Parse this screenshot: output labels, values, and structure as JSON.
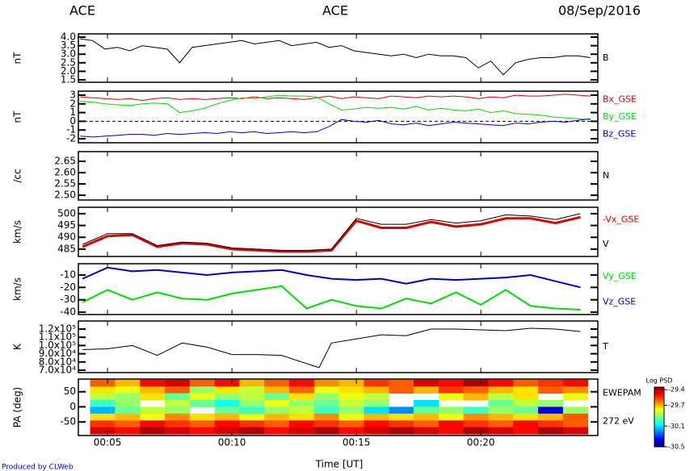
{
  "header": {
    "left": "ACE",
    "center": "ACE",
    "right": "08/Sep/2016"
  },
  "footer": "Produced by CLWeb",
  "time_axis": {
    "label": "Time [UT]",
    "xlim": [
      3.83,
      24.7
    ],
    "xticks": [
      {
        "value": 5,
        "label": "00:05"
      },
      {
        "value": 10,
        "label": "00:10"
      },
      {
        "value": 15,
        "label": "00:15"
      },
      {
        "value": 20,
        "label": "00:20"
      }
    ]
  },
  "chart_data": [
    {
      "type": "line",
      "ylabel": "nT",
      "ylim": [
        1.36,
        4.19
      ],
      "yticks": [
        {
          "value": 4,
          "label": "4.0"
        },
        3.5,
        {
          "value": 3,
          "label": "3.0"
        },
        2.5,
        {
          "value": 2,
          "label": "2.0"
        },
        1.5
      ],
      "x": [
        3.9,
        4.4,
        4.9,
        5.4,
        5.9,
        6.4,
        6.9,
        7.4,
        7.9,
        8.4,
        8.9,
        9.4,
        9.9,
        10.4,
        10.9,
        11.4,
        11.9,
        12.4,
        12.9,
        13.4,
        13.9,
        14.4,
        14.9,
        15.4,
        15.9,
        16.4,
        16.9,
        17.4,
        17.9,
        18.4,
        18.9,
        19.4,
        19.9,
        20.4,
        20.9,
        21.4,
        21.9,
        22.4,
        22.9,
        23.4,
        23.9,
        24.4
      ],
      "series": [
        {
          "name": "B",
          "color": "#000000",
          "values": [
            3.9,
            3.8,
            3.3,
            3.4,
            3.2,
            3.5,
            3.4,
            3.3,
            2.5,
            3.4,
            3.5,
            3.6,
            3.7,
            3.8,
            3.6,
            3.7,
            3.8,
            3.5,
            3.6,
            3.7,
            3.4,
            3.5,
            3.2,
            3.1,
            3.0,
            2.9,
            3.0,
            2.8,
            3.0,
            2.9,
            2.9,
            2.8,
            2.2,
            2.6,
            1.8,
            2.5,
            2.7,
            2.8,
            2.8,
            2.9,
            2.9,
            2.8
          ]
        }
      ]
    },
    {
      "type": "line",
      "ylabel": "nT",
      "ylim": [
        -2.46,
        3.46
      ],
      "yticks": [
        3,
        2,
        1,
        0,
        -1,
        -2
      ],
      "zero_line": true,
      "x": [
        3.9,
        4.4,
        4.9,
        5.4,
        5.9,
        6.4,
        6.9,
        7.4,
        7.9,
        8.4,
        8.9,
        9.4,
        9.9,
        10.4,
        10.9,
        11.4,
        11.9,
        12.4,
        12.9,
        13.4,
        13.9,
        14.4,
        14.9,
        15.4,
        15.9,
        16.4,
        16.9,
        17.4,
        17.9,
        18.4,
        18.9,
        19.4,
        19.9,
        20.4,
        20.9,
        21.4,
        21.9,
        22.4,
        22.9,
        23.4,
        23.9,
        24.4
      ],
      "series": [
        {
          "name": "Bx_GSE",
          "color": "#e00000",
          "values": [
            2.8,
            2.7,
            2.6,
            2.5,
            2.6,
            2.4,
            2.6,
            2.7,
            2.5,
            2.6,
            2.5,
            2.6,
            2.7,
            2.6,
            2.8,
            2.6,
            2.7,
            2.6,
            2.5,
            2.7,
            2.9,
            2.6,
            2.8,
            2.7,
            2.6,
            2.9,
            2.8,
            2.7,
            2.9,
            2.8,
            2.9,
            2.8,
            2.6,
            2.8,
            2.7,
            3.0,
            2.9,
            2.9,
            3.0,
            3.1,
            3.0,
            2.9
          ]
        },
        {
          "name": "By_GSE",
          "color": "#00dd00",
          "values": [
            2.3,
            2.2,
            2.0,
            1.9,
            1.8,
            2.0,
            2.1,
            2.0,
            1.0,
            1.2,
            1.5,
            2.0,
            2.4,
            2.7,
            2.6,
            2.8,
            3.0,
            2.9,
            2.9,
            2.8,
            2.0,
            1.3,
            1.4,
            1.6,
            1.5,
            1.6,
            1.4,
            1.7,
            1.3,
            1.5,
            1.3,
            1.2,
            1.4,
            1.0,
            1.2,
            0.9,
            0.8,
            0.7,
            0.5,
            0.4,
            0.3,
            0.2
          ]
        },
        {
          "name": "Bz_GSE",
          "color": "#0000cc",
          "values": [
            -1.7,
            -1.8,
            -1.7,
            -1.6,
            -1.5,
            -1.5,
            -1.6,
            -1.4,
            -1.5,
            -1.4,
            -1.3,
            -1.4,
            -1.2,
            -1.3,
            -1.2,
            -1.4,
            -1.3,
            -1.2,
            -1.3,
            -1.2,
            -0.6,
            0.2,
            0.0,
            -0.1,
            0.1,
            -0.3,
            -0.4,
            -0.2,
            -0.5,
            -0.3,
            -0.1,
            -0.2,
            -0.3,
            -0.4,
            -0.5,
            -0.2,
            -0.3,
            -0.1,
            0.0,
            -0.1,
            0.1,
            0.3
          ]
        }
      ]
    },
    {
      "type": "line",
      "ylabel": "/cc",
      "ylim": [
        2.479,
        2.693
      ],
      "yticks": [
        2.65,
        {
          "value": 2.6,
          "label": "2.60"
        },
        2.55,
        {
          "value": 2.5,
          "label": "2.50"
        }
      ],
      "x": [],
      "series": [
        {
          "name": "N",
          "color": "#000000",
          "values": []
        }
      ]
    },
    {
      "type": "line",
      "ylabel": "km/s",
      "ylim": [
        481.9,
        502.7
      ],
      "yticks": [
        500,
        495,
        490,
        485
      ],
      "x": [
        4,
        5,
        6,
        7,
        8,
        9,
        10,
        11,
        12,
        13,
        14,
        15,
        16,
        17,
        18,
        19,
        20,
        21,
        22,
        23,
        24
      ],
      "series": [
        {
          "name": "-Vx_GSE",
          "color": "#e00000",
          "width": 3,
          "values": [
            486,
            490.5,
            491,
            486,
            487.5,
            487,
            485,
            484.5,
            484,
            484,
            484.5,
            497,
            494,
            494,
            496.5,
            494.5,
            495.5,
            498,
            498,
            496,
            498.5
          ]
        },
        {
          "name": "V",
          "color": "#000000",
          "width": 1,
          "values": [
            487,
            491.5,
            491.5,
            486.5,
            488,
            487.5,
            485.5,
            485,
            484.5,
            484.5,
            485,
            498,
            495.5,
            495.5,
            497.5,
            496,
            497,
            499.5,
            499,
            497.5,
            500
          ]
        }
      ]
    },
    {
      "type": "line",
      "ylabel": "km/s",
      "ylim": [
        -41.9,
        -0.9
      ],
      "yticks": [
        -10,
        -20,
        -30,
        -40
      ],
      "x": [
        4,
        5,
        6,
        7,
        8,
        9,
        10,
        11,
        12,
        13,
        14,
        15,
        16,
        17,
        18,
        19,
        20,
        21,
        22,
        23,
        24
      ],
      "series": [
        {
          "name": "Vy_GSE",
          "color": "#00dd00",
          "width": 2,
          "values": [
            -32,
            -22,
            -30,
            -24,
            -29,
            -30,
            -25,
            -22,
            -19,
            -37,
            -30,
            -35,
            -37,
            -29,
            -33,
            -24,
            -34,
            -22,
            -35,
            -37,
            -38
          ]
        },
        {
          "name": "Vz_GSE",
          "color": "#0000cc",
          "width": 2,
          "values": [
            -13,
            -4,
            -7,
            -6,
            -8,
            -10,
            -8,
            -7,
            -6,
            -10,
            -13,
            -14,
            -13,
            -17,
            -13,
            -14,
            -13,
            -12,
            -10,
            -15,
            -20
          ]
        }
      ]
    },
    {
      "type": "line",
      "ylabel": "K",
      "ylim": [
        67060,
        129800
      ],
      "yticks": [
        {
          "value": 120000,
          "label": "1.2x10⁵"
        },
        {
          "value": 110000,
          "label": "1.1x10⁵"
        },
        {
          "value": 100000,
          "label": "1.0x10⁵"
        },
        {
          "value": 90000,
          "label": "9.0x10⁴"
        },
        {
          "value": 80000,
          "label": "8.0x10⁴"
        },
        {
          "value": 70000,
          "label": "7.0x10⁴"
        }
      ],
      "x": [
        4,
        5,
        6,
        7,
        8,
        9,
        10,
        11,
        12,
        13.5,
        14,
        15,
        16,
        17,
        18,
        19,
        20,
        21,
        22,
        23,
        24
      ],
      "series": [
        {
          "name": "T",
          "color": "#000000",
          "values": [
            95000,
            96000,
            100000,
            88000,
            103000,
            98000,
            89000,
            89000,
            88000,
            73000,
            103000,
            108000,
            113000,
            112000,
            120000,
            120000,
            119000,
            118000,
            121000,
            120000,
            117000
          ]
        }
      ]
    },
    {
      "type": "heatmap",
      "ylabel": "PA (deg)",
      "ylim": [
        -95,
        92
      ],
      "yticks": [
        50,
        0,
        -50
      ],
      "cmap": "jet",
      "right_labels": [
        "EWEPAM",
        "272 eV"
      ],
      "colorbar_title": "Log PSD",
      "zlim": [
        -30.5,
        -29.35
      ],
      "zticks": [
        -29.4,
        -29.7,
        -30.1,
        -30.5
      ],
      "x_bins": [
        4.3,
        5.3,
        6.3,
        7.3,
        8.3,
        9.3,
        10.3,
        11.3,
        12.3,
        13.3,
        14.3,
        15.3,
        16.3,
        17.3,
        18.3,
        19.3,
        20.3,
        21.3,
        22.3,
        23.3,
        24.3
      ],
      "y_bins": [
        90,
        67.5,
        45,
        22.5,
        0,
        -22.5,
        -45,
        -67.5,
        -90
      ],
      "values": [
        [
          -29.6,
          -29.7,
          -29.5,
          -29.45,
          -29.6,
          -29.5,
          -29.7,
          -29.6,
          -29.5,
          -29.65,
          -29.7,
          -29.55,
          -29.6,
          -29.45,
          -29.5,
          -29.4,
          -29.5,
          -29.6,
          -29.55,
          -29.5
        ],
        [
          -29.75,
          -29.8,
          -29.7,
          -29.6,
          -29.9,
          -29.75,
          -29.85,
          -29.7,
          -29.6,
          -29.8,
          -29.75,
          -29.7,
          -29.6,
          -29.7,
          -29.55,
          -29.6,
          -29.7,
          -29.75,
          -29.6,
          -29.65
        ],
        [
          -29.85,
          -29.9,
          -29.75,
          -29.95,
          -29.8,
          -29.9,
          -29.85,
          -29.95,
          -29.75,
          -29.9,
          -29.8,
          -29.85,
          null,
          null,
          -29.8,
          -29.7,
          -29.85,
          -29.75,
          null,
          -29.8
        ],
        [
          -30.0,
          -29.9,
          null,
          -29.85,
          -29.95,
          -30.05,
          -29.9,
          -29.8,
          -29.9,
          -29.95,
          -29.85,
          -29.9,
          null,
          -30.1,
          null,
          null,
          -29.95,
          -29.85,
          -29.9,
          null
        ],
        [
          -30.15,
          -29.95,
          -29.85,
          -29.9,
          null,
          -29.95,
          -30.0,
          -29.9,
          -29.85,
          -30.0,
          -29.9,
          -30.1,
          -30.2,
          -29.95,
          -29.9,
          -30.0,
          -29.9,
          -29.95,
          -30.4,
          -29.9
        ],
        [
          -29.75,
          -29.7,
          -29.8,
          -29.65,
          -29.75,
          -29.7,
          -29.8,
          -29.7,
          -29.75,
          -29.65,
          -29.8,
          -29.7,
          -29.75,
          -29.7,
          -29.8,
          -29.65,
          -29.7,
          -29.75,
          -29.7,
          -29.6
        ],
        [
          -29.55,
          -29.6,
          -29.5,
          -29.55,
          -29.6,
          -29.5,
          -29.55,
          -29.6,
          -29.5,
          -29.55,
          -29.6,
          -29.5,
          -29.55,
          -29.6,
          -29.5,
          -29.55,
          -29.6,
          -29.5,
          -29.55,
          -29.6
        ],
        [
          -29.45,
          -29.5,
          -29.4,
          -29.45,
          -29.5,
          -29.45,
          -29.4,
          -29.5,
          -29.45,
          -29.4,
          -29.5,
          -29.45,
          -29.4,
          -29.45,
          -29.5,
          -29.4,
          -29.45,
          -29.5,
          -29.4,
          -29.45
        ]
      ]
    }
  ]
}
